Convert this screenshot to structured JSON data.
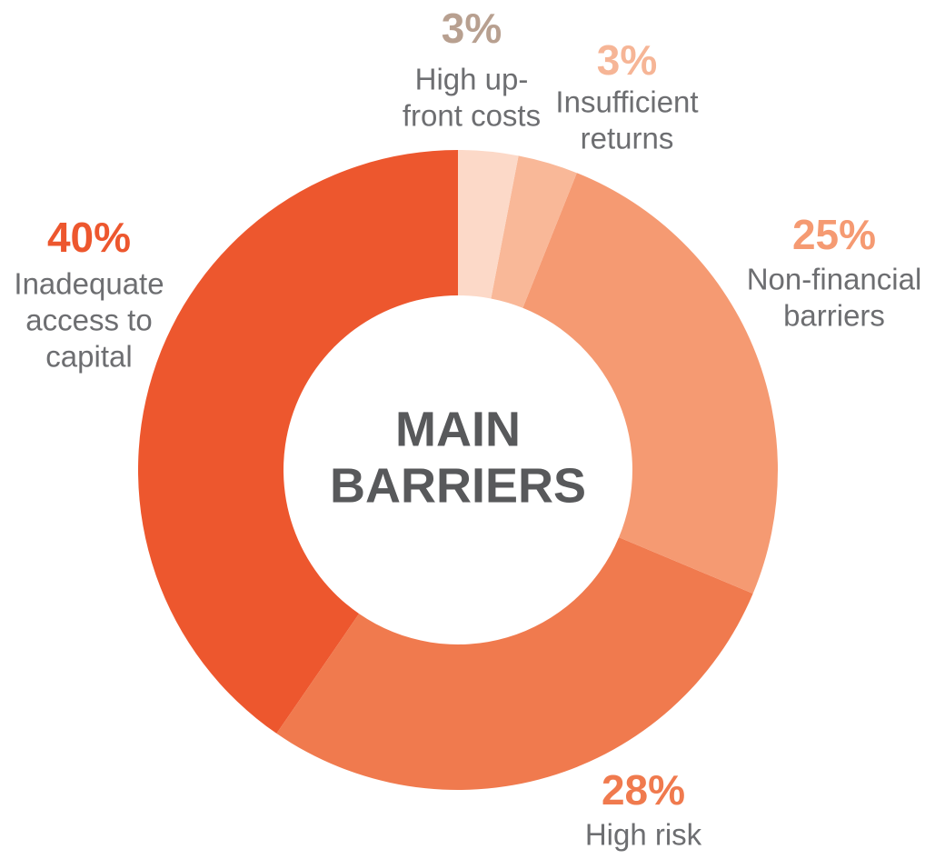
{
  "chart_data": {
    "type": "donut",
    "center_text": [
      "MAIN",
      "BARRIERS"
    ],
    "categories": [
      [
        "High up-",
        "front costs"
      ],
      [
        "Insufficient",
        "returns"
      ],
      [
        "Non-financial",
        "barriers"
      ],
      [
        "High risk"
      ],
      [
        "Inadequate",
        "access to",
        "capital"
      ]
    ],
    "values": [
      3,
      3,
      25,
      28,
      40
    ],
    "value_labels": [
      "3%",
      "3%",
      "25%",
      "28%",
      "40%"
    ],
    "colors": [
      "#fcd9c8",
      "#f9b898",
      "#f59a72",
      "#f07a4e",
      "#ed572e"
    ],
    "label_colors": [
      "#b8a090",
      "#f6b596",
      "#f59a72",
      "#f07a4e",
      "#ed572e"
    ]
  }
}
